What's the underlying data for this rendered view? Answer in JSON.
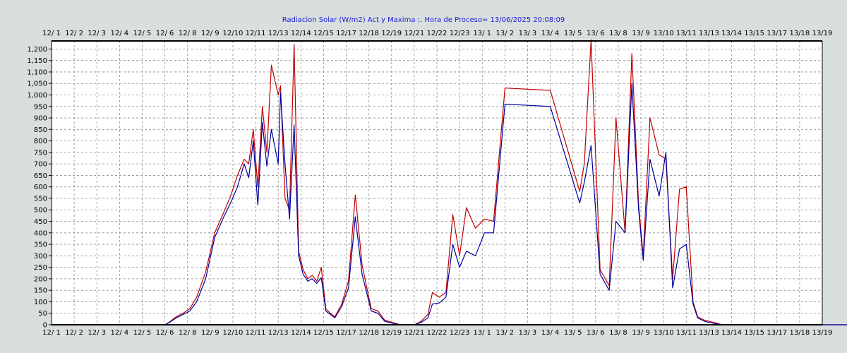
{
  "colors": {
    "background": "#d9dede",
    "plot_background": "#ffffff",
    "grid": "#8c8c8c",
    "series_actual": "#0000a0",
    "series_max": "#c00000",
    "title": "#1a1ad8"
  },
  "chart_data": {
    "type": "line",
    "title": "Radiacion Solar (W/m2) Act y Maxima :. Hora de Proceso= 13/06/2025 20:08:09",
    "xlabel": "",
    "ylabel": "",
    "grid": true,
    "ylim": [
      0,
      1235
    ],
    "yticks": [
      0,
      50,
      100,
      150,
      200,
      250,
      300,
      350,
      400,
      450,
      500,
      550,
      600,
      650,
      700,
      750,
      800,
      850,
      900,
      950,
      1000,
      1050,
      1100,
      1150,
      1200
    ],
    "ytick_labels": [
      "0",
      "50",
      "100",
      "150",
      "200",
      "250",
      "300",
      "350",
      "400",
      "450",
      "500",
      "550",
      "600",
      "650",
      "700",
      "750",
      "800",
      "850",
      "900",
      "950",
      "1,000",
      "1,050",
      "1,100",
      "1,150",
      "1,200"
    ],
    "xlim": [
      "12/ 1",
      "13/19"
    ],
    "xticks": [
      "12/ 1",
      "12/ 2",
      "12/ 3",
      "12/ 4",
      "12/ 5",
      "12/ 6",
      "12/ 8",
      "12/ 9",
      "12/10",
      "12/11",
      "12/13",
      "12/14",
      "12/15",
      "12/17",
      "12/18",
      "12/19",
      "12/21",
      "12/22",
      "12/23",
      "13/ 1",
      "13/ 2",
      "13/ 3",
      "13/ 4",
      "13/ 5",
      "13/ 6",
      "13/ 8",
      "13/ 9",
      "13/10",
      "13/11",
      "13/13",
      "13/14",
      "13/15",
      "13/17",
      "13/18",
      "13/19"
    ],
    "series": [
      {
        "key": "actual",
        "x": [
          0,
          5,
          5.2,
          5.5,
          5.8,
          6.1,
          6.4,
          6.8,
          7.2,
          7.6,
          7.9,
          8.2,
          8.5,
          8.7,
          8.9,
          9.1,
          9.3,
          9.5,
          9.7,
          10.0,
          10.1,
          10.3,
          10.5,
          10.7,
          10.9,
          11.1,
          11.3,
          11.5,
          11.7,
          11.9,
          12.1,
          12.3,
          12.5,
          12.8,
          13.1,
          13.4,
          13.7,
          14.1,
          14.4,
          14.7,
          15.1,
          15.4,
          15.7,
          16.0,
          16.3,
          16.6,
          16.8,
          17.1,
          17.4,
          17.7,
          18.0,
          18.3,
          18.7,
          19.1,
          19.5,
          20,
          22,
          23.3,
          23.5,
          23.8,
          24.2,
          24.6,
          24.9,
          25.3,
          25.6,
          25.9,
          26.1,
          26.4,
          26.8,
          27.1,
          27.4,
          27.7,
          28.0,
          28.3,
          28.5,
          28.8,
          29.0,
          29.3,
          29.6,
          29.9,
          30.2,
          30.5,
          30.8,
          31.1,
          31.4,
          31.6,
          31.9,
          32.2,
          32.5,
          32.8,
          33.2,
          33.5,
          33.8,
          34.1,
          34.5,
          34.9,
          35.5,
          36.5
        ],
        "y": [
          0,
          0,
          10,
          30,
          45,
          60,
          100,
          200,
          380,
          470,
          530,
          600,
          700,
          640,
          800,
          520,
          880,
          690,
          850,
          700,
          1010,
          700,
          460,
          870,
          300,
          220,
          190,
          200,
          180,
          205,
          60,
          45,
          30,
          80,
          160,
          470,
          220,
          60,
          50,
          15,
          5,
          0,
          0,
          0,
          10,
          30,
          90,
          95,
          120,
          350,
          250,
          320,
          300,
          400,
          400,
          960,
          950,
          530,
          620,
          780,
          220,
          150,
          450,
          400,
          1050,
          500,
          280,
          720,
          560,
          750,
          160,
          330,
          350,
          90,
          30,
          15,
          10,
          5,
          0,
          0,
          0,
          0,
          0,
          0,
          0,
          0,
          0,
          0,
          0,
          0,
          0,
          0,
          0,
          0,
          0,
          0,
          0,
          0
        ]
      },
      {
        "key": "max",
        "x": [
          0,
          5,
          5.2,
          5.5,
          5.8,
          6.1,
          6.4,
          6.8,
          7.2,
          7.6,
          7.9,
          8.2,
          8.5,
          8.7,
          8.9,
          9.1,
          9.3,
          9.5,
          9.7,
          10.0,
          10.1,
          10.3,
          10.5,
          10.7,
          10.9,
          11.1,
          11.3,
          11.5,
          11.7,
          11.9,
          12.1,
          12.3,
          12.5,
          12.8,
          13.1,
          13.4,
          13.7,
          14.1,
          14.4,
          14.7,
          15.1,
          15.4,
          15.7,
          16.0,
          16.3,
          16.6,
          16.8,
          17.1,
          17.4,
          17.7,
          18.0,
          18.3,
          18.7,
          19.1,
          19.5,
          20,
          22,
          23.3,
          23.5,
          23.8,
          24.2,
          24.6,
          24.9,
          25.3,
          25.6,
          25.9,
          26.1,
          26.4,
          26.8,
          27.1,
          27.4,
          27.7,
          28.0,
          28.3,
          28.5,
          28.8,
          29.0,
          29.3,
          29.6,
          29.9,
          30.2,
          30.5,
          30.8,
          31.1,
          31.4,
          31.6,
          31.9,
          32.2,
          32.5,
          32.8,
          33.2,
          33.5,
          33.8,
          34.1,
          34.5,
          34.9,
          35.5,
          36.5
        ],
        "y": [
          0,
          0,
          12,
          35,
          50,
          70,
          120,
          230,
          400,
          490,
          560,
          650,
          720,
          700,
          850,
          600,
          950,
          750,
          1130,
          1000,
          1040,
          550,
          500,
          1220,
          320,
          240,
          200,
          215,
          190,
          250,
          70,
          50,
          35,
          90,
          190,
          565,
          260,
          70,
          60,
          20,
          8,
          0,
          0,
          0,
          15,
          45,
          140,
          120,
          140,
          480,
          300,
          510,
          420,
          460,
          450,
          1030,
          1020,
          580,
          700,
          1240,
          240,
          170,
          900,
          400,
          1180,
          520,
          300,
          900,
          740,
          720,
          200,
          590,
          600,
          100,
          35,
          20,
          15,
          8,
          0,
          0,
          0,
          0,
          0,
          0,
          0,
          0,
          0,
          0,
          0,
          0,
          0,
          0,
          0,
          0,
          0,
          0,
          0,
          0
        ]
      }
    ]
  }
}
